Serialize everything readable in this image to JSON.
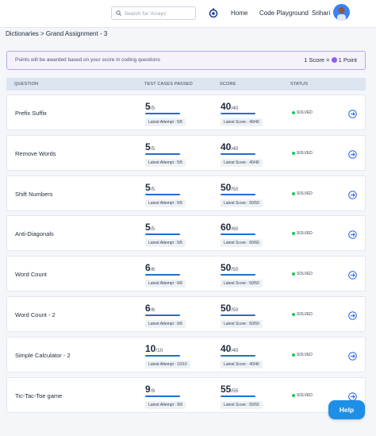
{
  "header": {
    "search_placeholder": "Search for 'Arrays'",
    "nav": [
      "Home",
      "Code Playground"
    ],
    "user": "Srihari"
  },
  "breadcrumb": "Dictionaries > Grand Assignment - 3",
  "notice": {
    "text": "Points will be awarded based on your score in coding questions",
    "rule_left": "1 Score =",
    "rule_right": "1 Point"
  },
  "table": {
    "headers": [
      "QUESTION",
      "TEST CASES PASSED",
      "SCORE",
      "STATUS"
    ],
    "rows": [
      {
        "question": "Prefix Suffix",
        "passed": "5",
        "total": "/5",
        "attempt": "Latest Attempt : 5/5",
        "score": "40",
        "max": "/40",
        "latest_score": "Latest Score : 40/40",
        "status": "SOLVED"
      },
      {
        "question": "Remove Words",
        "passed": "5",
        "total": "/5",
        "attempt": "Latest Attempt : 5/5",
        "score": "40",
        "max": "/40",
        "latest_score": "Latest Score : 40/40",
        "status": "SOLVED"
      },
      {
        "question": "Shift Numbers",
        "passed": "5",
        "total": "/5",
        "attempt": "Latest Attempt : 5/5",
        "score": "50",
        "max": "/50",
        "latest_score": "Latest Score : 50/50",
        "status": "SOLVED"
      },
      {
        "question": "Anti-Diagonals",
        "passed": "5",
        "total": "/5",
        "attempt": "Latest Attempt : 5/5",
        "score": "60",
        "max": "/60",
        "latest_score": "Latest Score : 60/60",
        "status": "SOLVED"
      },
      {
        "question": "Word Count",
        "passed": "6",
        "total": "/6",
        "attempt": "Latest Attempt : 6/6",
        "score": "50",
        "max": "/50",
        "latest_score": "Latest Score : 50/50",
        "status": "SOLVED"
      },
      {
        "question": "Word Count - 2",
        "passed": "6",
        "total": "/6",
        "attempt": "Latest Attempt : 6/6",
        "score": "50",
        "max": "/50",
        "latest_score": "Latest Score : 50/50",
        "status": "SOLVED"
      },
      {
        "question": "Simple Calculator - 2",
        "passed": "10",
        "total": "/10",
        "attempt": "Latest Attempt : 10/10",
        "score": "40",
        "max": "/40",
        "latest_score": "Latest Score : 40/40",
        "status": "SOLVED"
      },
      {
        "question": "Tic-Tac-Toe game",
        "passed": "9",
        "total": "/9",
        "attempt": "Latest Attempt : 9/9",
        "score": "55",
        "max": "/55",
        "latest_score": "Latest Score : 55/55",
        "status": "SOLVED"
      }
    ]
  },
  "help": "Help"
}
